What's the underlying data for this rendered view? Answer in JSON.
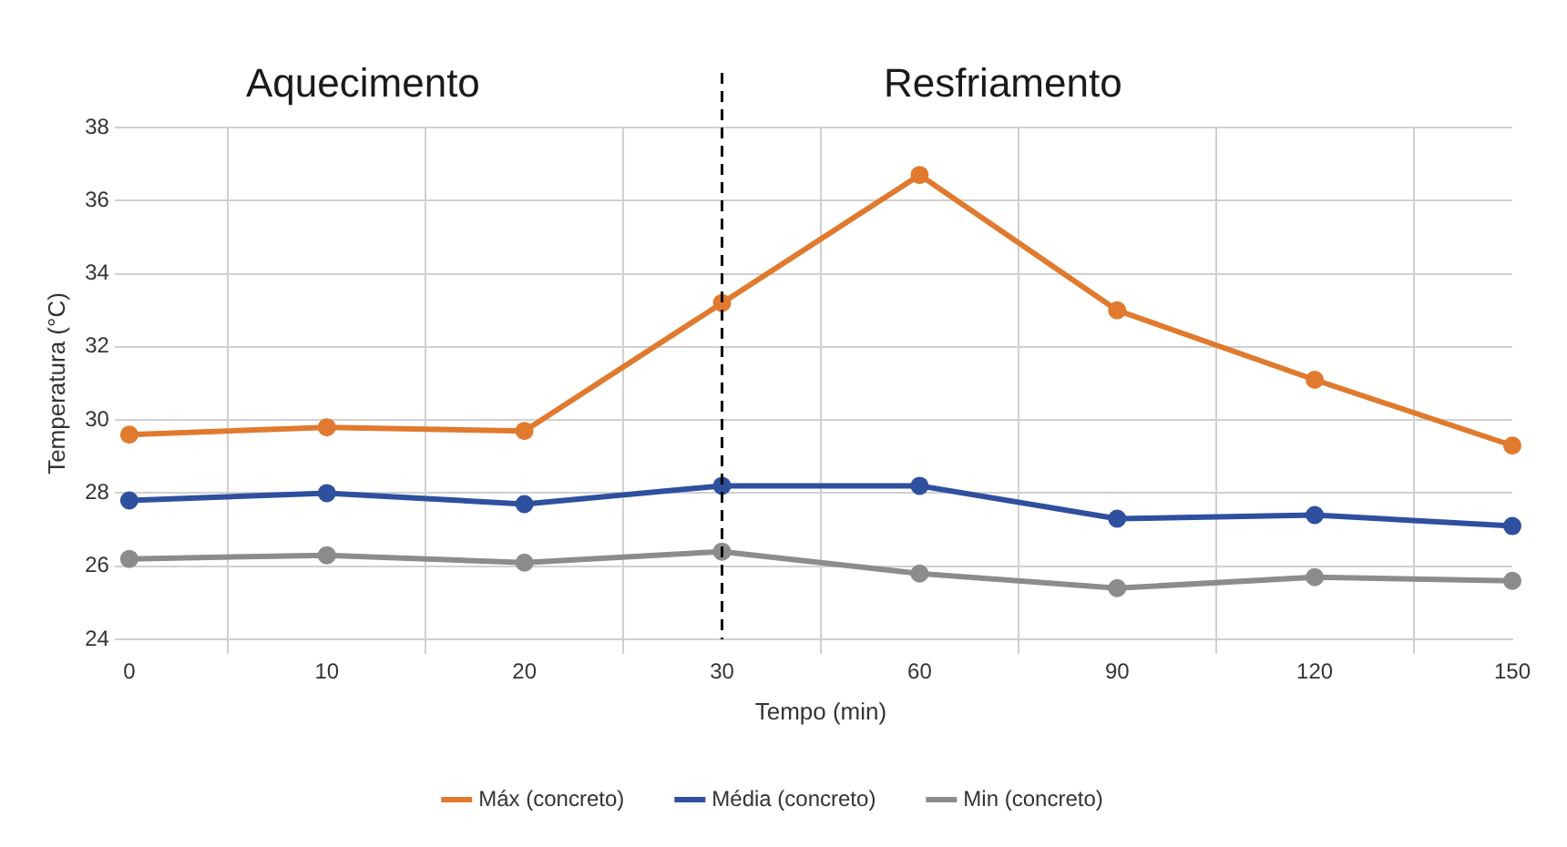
{
  "chart_data": {
    "type": "line",
    "xlabel": "Tempo (min)",
    "ylabel": "Temperatura (°C)",
    "annotations": [
      "Aquecimento",
      "Resfriamento"
    ],
    "categories": [
      "0",
      "10",
      "20",
      "30",
      "60",
      "90",
      "120",
      "150"
    ],
    "series": [
      {
        "name": "Máx (concreto)",
        "color": "#e07a2e",
        "values": [
          29.6,
          29.8,
          29.7,
          33.2,
          36.7,
          33.0,
          31.1,
          29.3
        ]
      },
      {
        "name": "Média (concreto)",
        "color": "#2f4f9f",
        "values": [
          27.8,
          28.0,
          27.7,
          28.2,
          28.2,
          27.3,
          27.4,
          27.1
        ]
      },
      {
        "name": "Min (concreto)",
        "color": "#8c8c8c",
        "values": [
          26.2,
          26.3,
          26.1,
          26.4,
          25.8,
          25.4,
          25.7,
          25.6
        ]
      }
    ],
    "ylim": [
      24,
      38
    ],
    "yticks": [
      24,
      26,
      28,
      30,
      32,
      34,
      36,
      38
    ],
    "ref_lines": [
      {
        "axis": "x",
        "value": "30",
        "color": "#000000",
        "line_style": "dashed"
      }
    ],
    "grid": true,
    "legend": "bottom",
    "marker": "circle",
    "line_style": "solid"
  }
}
